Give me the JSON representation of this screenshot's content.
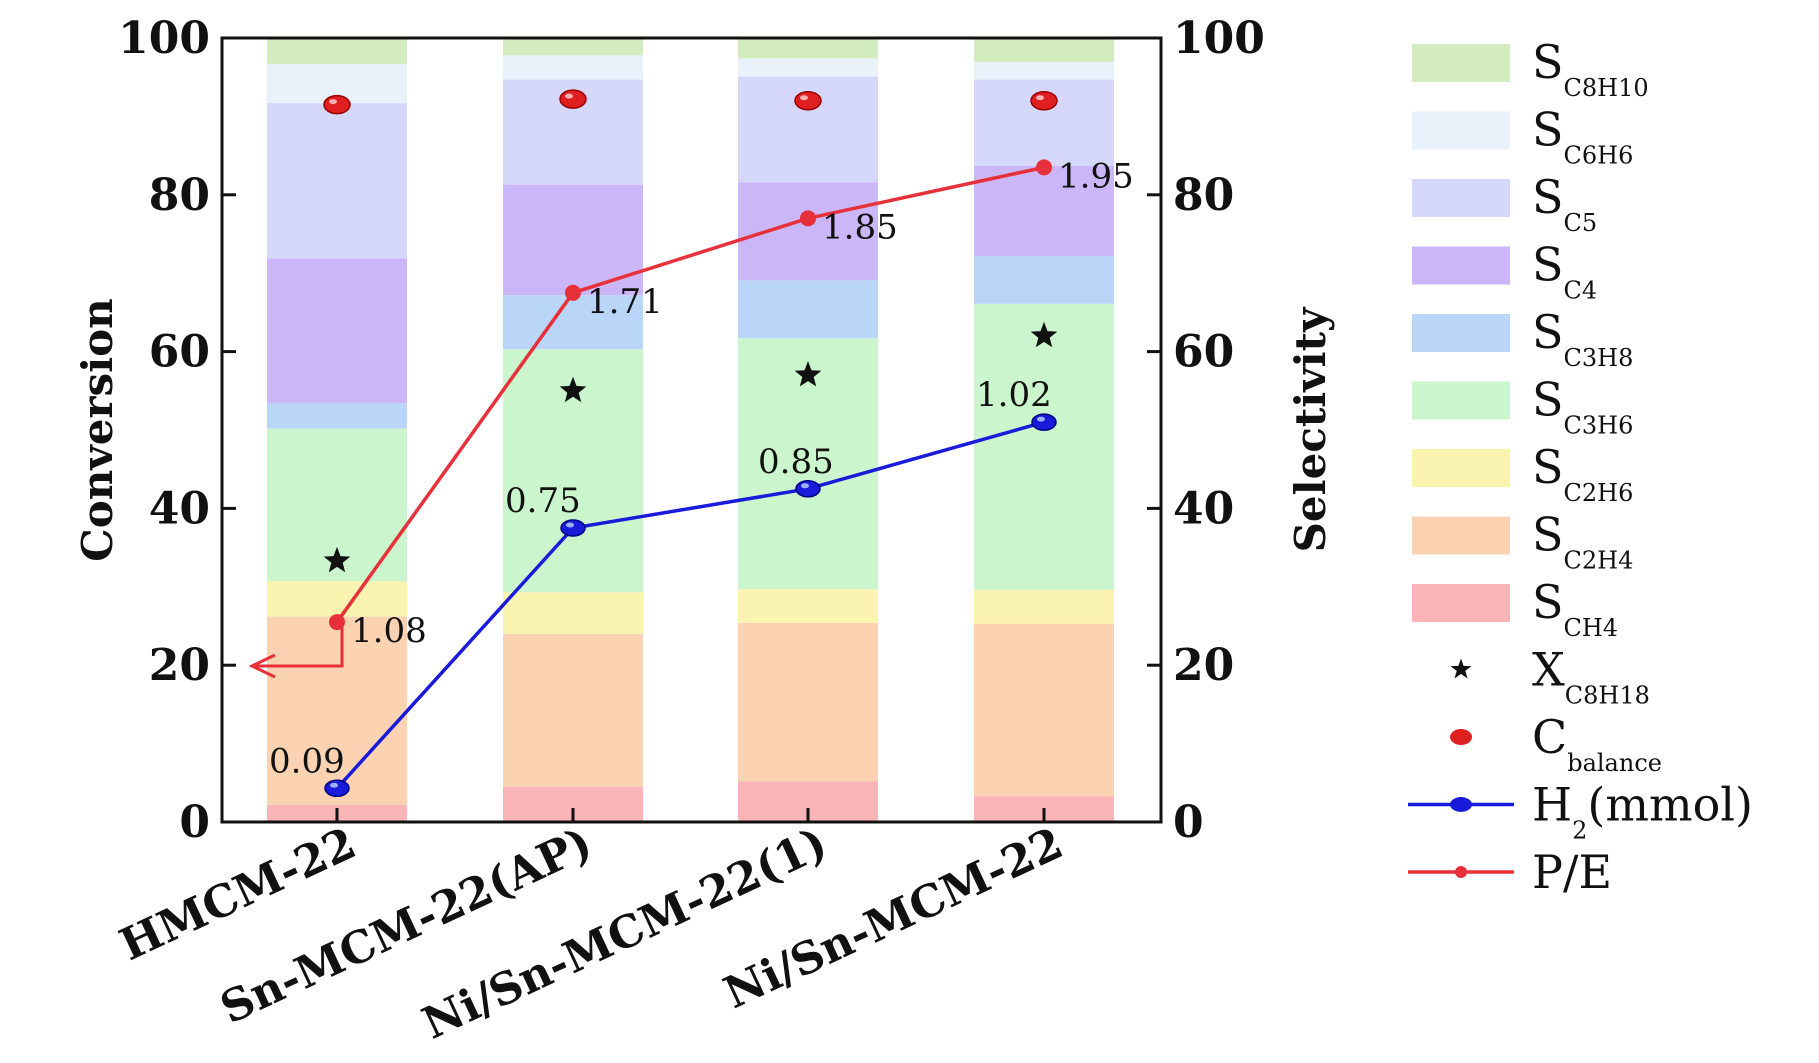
{
  "chart_data": {
    "type": "bar",
    "stacked": true,
    "categories": [
      "HMCM-22",
      "Sn-MCM-22(AP)",
      "Ni/Sn-MCM-22(1)",
      "Ni/Sn-MCM-22"
    ],
    "ylabel_left": "Conversion",
    "ylabel_right": "Selectivity",
    "ylim": [
      0,
      100
    ],
    "yticks": [
      0,
      20,
      40,
      60,
      80,
      100
    ],
    "series": [
      {
        "name": "S",
        "sub": "CH4",
        "color": "#f8b4b6",
        "values": [
          2.2,
          4.5,
          5.2,
          3.3
        ]
      },
      {
        "name": "S",
        "sub": "C2H4",
        "color": "#fcd3b2",
        "values": [
          24.0,
          19.5,
          20.2,
          22.0
        ]
      },
      {
        "name": "S",
        "sub": "C2H6",
        "color": "#fbf4b0",
        "values": [
          4.5,
          5.3,
          4.3,
          4.3
        ]
      },
      {
        "name": "S",
        "sub": "C3H6",
        "color": "#cbf6cd",
        "values": [
          19.5,
          31.0,
          32.0,
          36.5
        ]
      },
      {
        "name": "S",
        "sub": "C3H8",
        "color": "#b9d6f9",
        "values": [
          3.2,
          6.9,
          7.4,
          6.1
        ]
      },
      {
        "name": "S",
        "sub": "C4",
        "color": "#cbb6f7",
        "values": [
          18.5,
          14.1,
          12.5,
          11.5
        ]
      },
      {
        "name": "S",
        "sub": "C5",
        "color": "#d6d8fb",
        "values": [
          19.8,
          13.4,
          13.5,
          11.0
        ]
      },
      {
        "name": "S",
        "sub": "C6H6",
        "color": "#e9f2fb",
        "values": [
          5.0,
          3.1,
          2.3,
          2.2
        ]
      },
      {
        "name": "S",
        "sub": "C8H10",
        "color": "#d2ecbf",
        "values": [
          3.3,
          2.2,
          2.6,
          3.1
        ]
      }
    ],
    "markers": [
      {
        "name": "X",
        "sub": "C8H18",
        "symbol": "star",
        "color": "#111111",
        "values": [
          33.3,
          55.0,
          57.0,
          62.0
        ]
      },
      {
        "name": "C",
        "sub": "balance",
        "symbol": "sphere",
        "color": "#e02020",
        "values": [
          91.5,
          92.2,
          92.0,
          92.0
        ]
      }
    ],
    "lines": [
      {
        "name": "H",
        "sub": "2",
        "suffix": "(mmol)",
        "color": "#1a1adb",
        "values": [
          4.3,
          37.5,
          42.5,
          51.0
        ],
        "labels": [
          "0.09",
          "0.75",
          "0.85",
          "1.02"
        ]
      },
      {
        "name": "P/E",
        "sub": "",
        "suffix": "",
        "color": "#e8303a",
        "values": [
          25.5,
          67.5,
          77.0,
          83.5
        ],
        "labels": [
          "1.08",
          "1.71",
          "1.85",
          "1.95"
        ]
      }
    ]
  }
}
